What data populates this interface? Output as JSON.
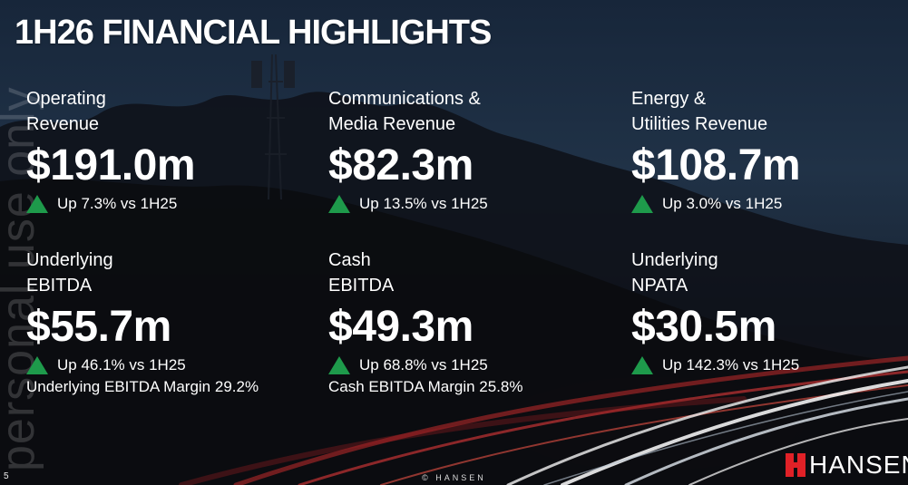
{
  "slide": {
    "title": "1H26 FINANCIAL HIGHLIGHTS",
    "watermark": "personal use only",
    "page_number": "5",
    "footer": "© HANSEN",
    "logo_text": "HANSEN"
  },
  "metrics": [
    {
      "label_line1": "Operating",
      "label_line2": "Revenue",
      "value": "$191.0m",
      "change": "Up 7.3% vs 1H25",
      "note": ""
    },
    {
      "label_line1": "Communications &",
      "label_line2": "Media Revenue",
      "value": "$82.3m",
      "change": "Up 13.5% vs 1H25",
      "note": ""
    },
    {
      "label_line1": "Energy &",
      "label_line2": "Utilities Revenue",
      "value": "$108.7m",
      "change": "Up 3.0% vs 1H25",
      "note": ""
    },
    {
      "label_line1": "Underlying",
      "label_line2": "EBITDA",
      "value": "$55.7m",
      "change": "Up 46.1% vs 1H25",
      "note": "Underlying EBITDA Margin 29.2%"
    },
    {
      "label_line1": "Cash",
      "label_line2": "EBITDA",
      "value": "$49.3m",
      "change": "Up 68.8% vs 1H25",
      "note": "Cash EBITDA Margin 25.8%"
    },
    {
      "label_line1": "Underlying",
      "label_line2": "NPATA",
      "value": "$30.5m",
      "change": "Up 142.3% vs 1H25",
      "note": ""
    }
  ],
  "colors": {
    "up_arrow": "#1e9a4b",
    "logo_red": "#e02127"
  },
  "icons": {
    "trend": "triangle-up-icon",
    "logo": "hansen-h-icon"
  }
}
